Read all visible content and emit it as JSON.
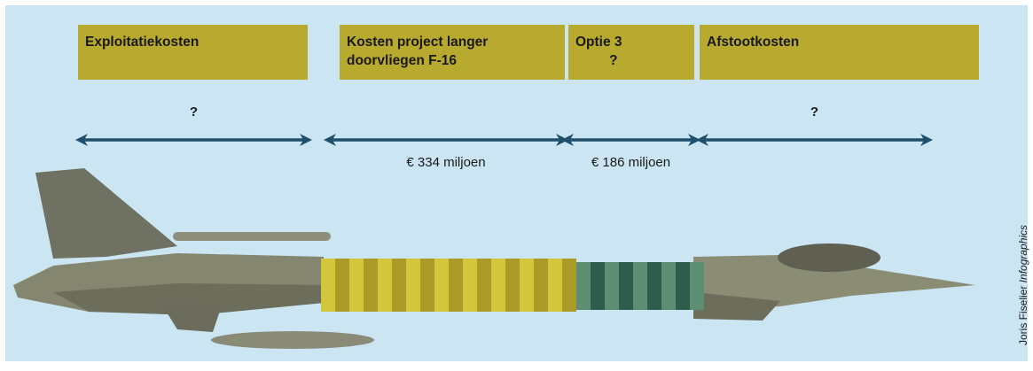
{
  "segments": [
    {
      "box": [
        "Exploitatiekosten"
      ],
      "cost": "?"
    },
    {
      "box": [
        "Kosten project langer",
        "doorvliegen F-16"
      ],
      "cost": "€ 334 miljoen"
    },
    {
      "box": [
        "Optie 3",
        "?"
      ],
      "cost": "€ 186 miljoen"
    },
    {
      "box": [
        "Afstootkosten"
      ],
      "cost": "?"
    }
  ],
  "credit": {
    "name": "Joris Fiselier",
    "role": "Infographics"
  }
}
